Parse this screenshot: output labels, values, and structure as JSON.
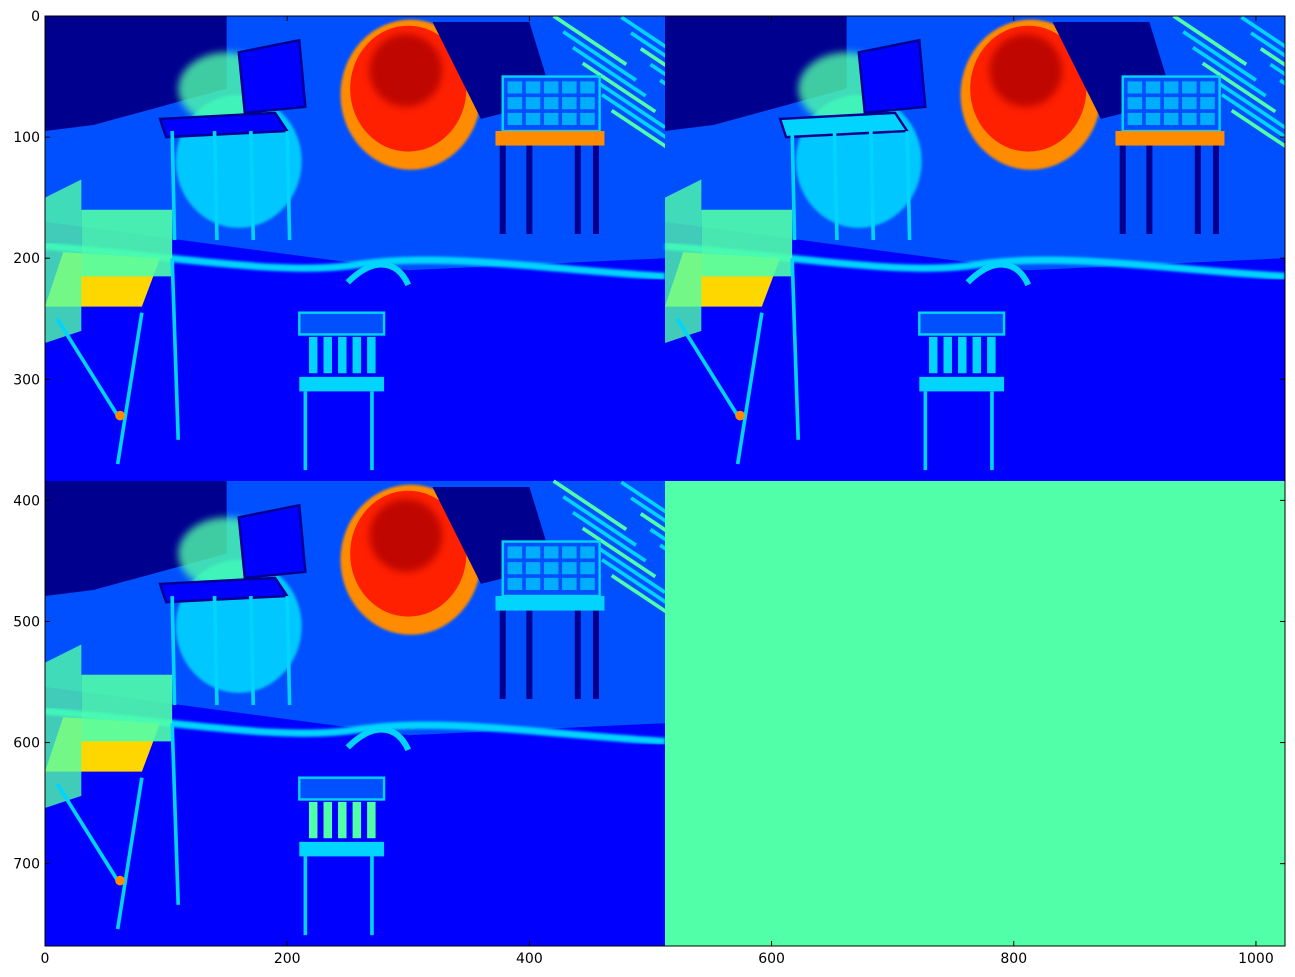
{
  "chart_data": {
    "type": "heatmap",
    "title": "",
    "xlabel": "",
    "ylabel": "",
    "colormap": "jet",
    "x_range": [
      0,
      1024
    ],
    "y_range": [
      768,
      0
    ],
    "x_ticks": [
      0,
      200,
      400,
      600,
      800,
      1000
    ],
    "y_ticks": [
      0,
      100,
      200,
      300,
      400,
      500,
      600,
      700
    ],
    "grid": false,
    "legend": "none",
    "panels": [
      {
        "name": "top-left",
        "x": [
          0,
          512
        ],
        "y": [
          0,
          384
        ],
        "content": "jet-colored depth/intensity image of chairs scene"
      },
      {
        "name": "top-right",
        "x": [
          512,
          1024
        ],
        "y": [
          0,
          384
        ],
        "content": "jet-colored depth/intensity image of chairs scene"
      },
      {
        "name": "bottom-left",
        "x": [
          0,
          512
        ],
        "y": [
          384,
          768
        ],
        "content": "jet-colored depth/intensity image of chairs scene"
      },
      {
        "name": "bottom-right",
        "x": [
          512,
          1024
        ],
        "y": [
          384,
          768
        ],
        "content": "uniform value",
        "color": "#50ffa8"
      }
    ],
    "colors": {
      "deep_blue": "#00008f",
      "blue": "#0000ff",
      "mid_blue": "#0050ff",
      "cyan": "#00d4ff",
      "aqua": "#50ffa8",
      "yellow": "#ffd700",
      "orange": "#ff8c00",
      "red": "#ff2000",
      "dark_red": "#b00000"
    }
  }
}
